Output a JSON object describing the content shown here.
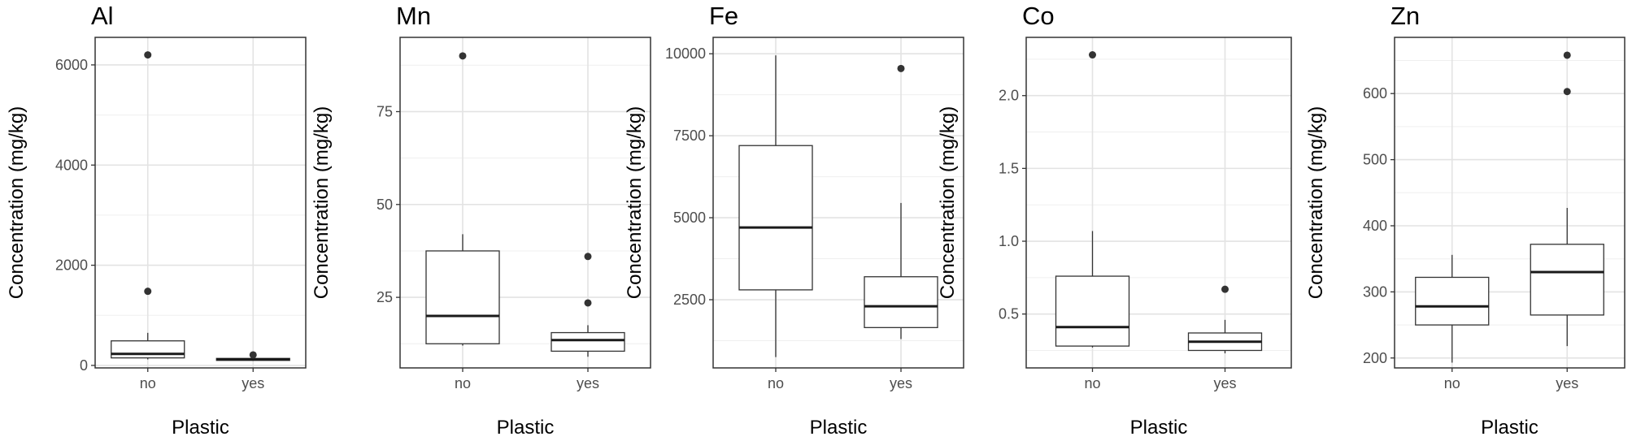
{
  "chart_data": [
    {
      "type": "box",
      "title": "Al",
      "xlabel": "Plastic",
      "ylabel": "Concentration (mg/kg)",
      "categories": [
        "no",
        "yes"
      ],
      "ylim": [
        -50,
        6550
      ],
      "yticks": [
        0,
        2000,
        4000,
        6000
      ],
      "grid": true,
      "boxes": [
        {
          "category": "no",
          "whisker_low": 120,
          "q1": 150,
          "median": 230,
          "q3": 490,
          "whisker_high": 650,
          "outliers": [
            1480,
            6200
          ]
        },
        {
          "category": "yes",
          "whisker_low": 90,
          "q1": 100,
          "median": 120,
          "q3": 140,
          "whisker_high": 160,
          "outliers": [
            210
          ]
        }
      ]
    },
    {
      "type": "box",
      "title": "Mn",
      "xlabel": "Plastic",
      "ylabel": "Concentration (mg/kg)",
      "categories": [
        "no",
        "yes"
      ],
      "ylim": [
        6,
        95
      ],
      "yticks": [
        25,
        50,
        75
      ],
      "grid": true,
      "boxes": [
        {
          "category": "no",
          "whisker_low": 12,
          "q1": 12.5,
          "median": 20,
          "q3": 37.5,
          "whisker_high": 42,
          "outliers": [
            90
          ]
        },
        {
          "category": "yes",
          "whisker_low": 9,
          "q1": 10.5,
          "median": 13.5,
          "q3": 15.5,
          "whisker_high": 17.5,
          "outliers": [
            23.5,
            36
          ]
        }
      ]
    },
    {
      "type": "box",
      "title": "Fe",
      "xlabel": "Plastic",
      "ylabel": "Concentration (mg/kg)",
      "categories": [
        "no",
        "yes"
      ],
      "ylim": [
        420,
        10500
      ],
      "yticks": [
        2500,
        5000,
        7500,
        10000
      ],
      "grid": true,
      "boxes": [
        {
          "category": "no",
          "whisker_low": 750,
          "q1": 2800,
          "median": 4700,
          "q3": 7200,
          "whisker_high": 9950,
          "outliers": []
        },
        {
          "category": "yes",
          "whisker_low": 1300,
          "q1": 1650,
          "median": 2300,
          "q3": 3200,
          "whisker_high": 5450,
          "outliers": [
            9550
          ]
        }
      ]
    },
    {
      "type": "box",
      "title": "Co",
      "xlabel": "Plastic",
      "ylabel": "Concentration (mg/kg)",
      "categories": [
        "no",
        "yes"
      ],
      "ylim": [
        0.13,
        2.4
      ],
      "yticks": [
        0.5,
        1.0,
        1.5,
        2.0
      ],
      "ytick_labels": [
        "0.5",
        "1.0",
        "1.5",
        "2.0"
      ],
      "grid": true,
      "boxes": [
        {
          "category": "no",
          "whisker_low": 0.27,
          "q1": 0.28,
          "median": 0.41,
          "q3": 0.76,
          "whisker_high": 1.07,
          "outliers": [
            2.28
          ]
        },
        {
          "category": "yes",
          "whisker_low": 0.23,
          "q1": 0.25,
          "median": 0.31,
          "q3": 0.37,
          "whisker_high": 0.46,
          "outliers": [
            0.67
          ]
        }
      ]
    },
    {
      "type": "box",
      "title": "Zn",
      "xlabel": "Plastic",
      "ylabel": "Concentration (mg/kg)",
      "categories": [
        "no",
        "yes"
      ],
      "ylim": [
        185,
        685
      ],
      "yticks": [
        200,
        300,
        400,
        500,
        600
      ],
      "grid": true,
      "boxes": [
        {
          "category": "no",
          "whisker_low": 193,
          "q1": 250,
          "median": 278,
          "q3": 322,
          "whisker_high": 356,
          "outliers": []
        },
        {
          "category": "yes",
          "whisker_low": 218,
          "q1": 265,
          "median": 330,
          "q3": 372,
          "whisker_high": 427,
          "outliers": [
            603,
            658
          ]
        }
      ]
    }
  ]
}
